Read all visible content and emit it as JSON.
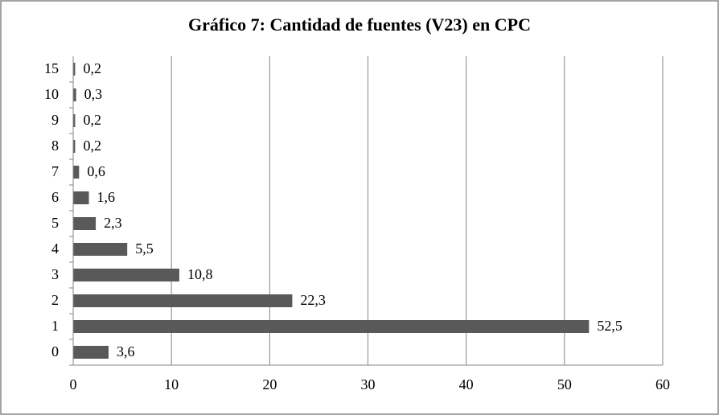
{
  "chart_data": {
    "type": "hbar",
    "title": "Gráfico 7: Cantidad  de fuentes (V23) en CPC",
    "categories": [
      "0",
      "1",
      "2",
      "3",
      "4",
      "5",
      "6",
      "7",
      "8",
      "9",
      "10",
      "15"
    ],
    "values": [
      3.6,
      52.5,
      22.3,
      10.8,
      5.5,
      2.3,
      1.6,
      0.6,
      0.2,
      0.2,
      0.3,
      0.2
    ],
    "value_labels": [
      "3,6",
      "52,5",
      "22,3",
      "10,8",
      "5,5",
      "2,3",
      "1,6",
      "0,6",
      "0,2",
      "0,2",
      "0,3",
      "0,2"
    ],
    "color": "#595959",
    "xlim": [
      0,
      60
    ],
    "xticks": [
      0,
      10,
      20,
      30,
      40,
      50,
      60
    ],
    "grid": true
  }
}
